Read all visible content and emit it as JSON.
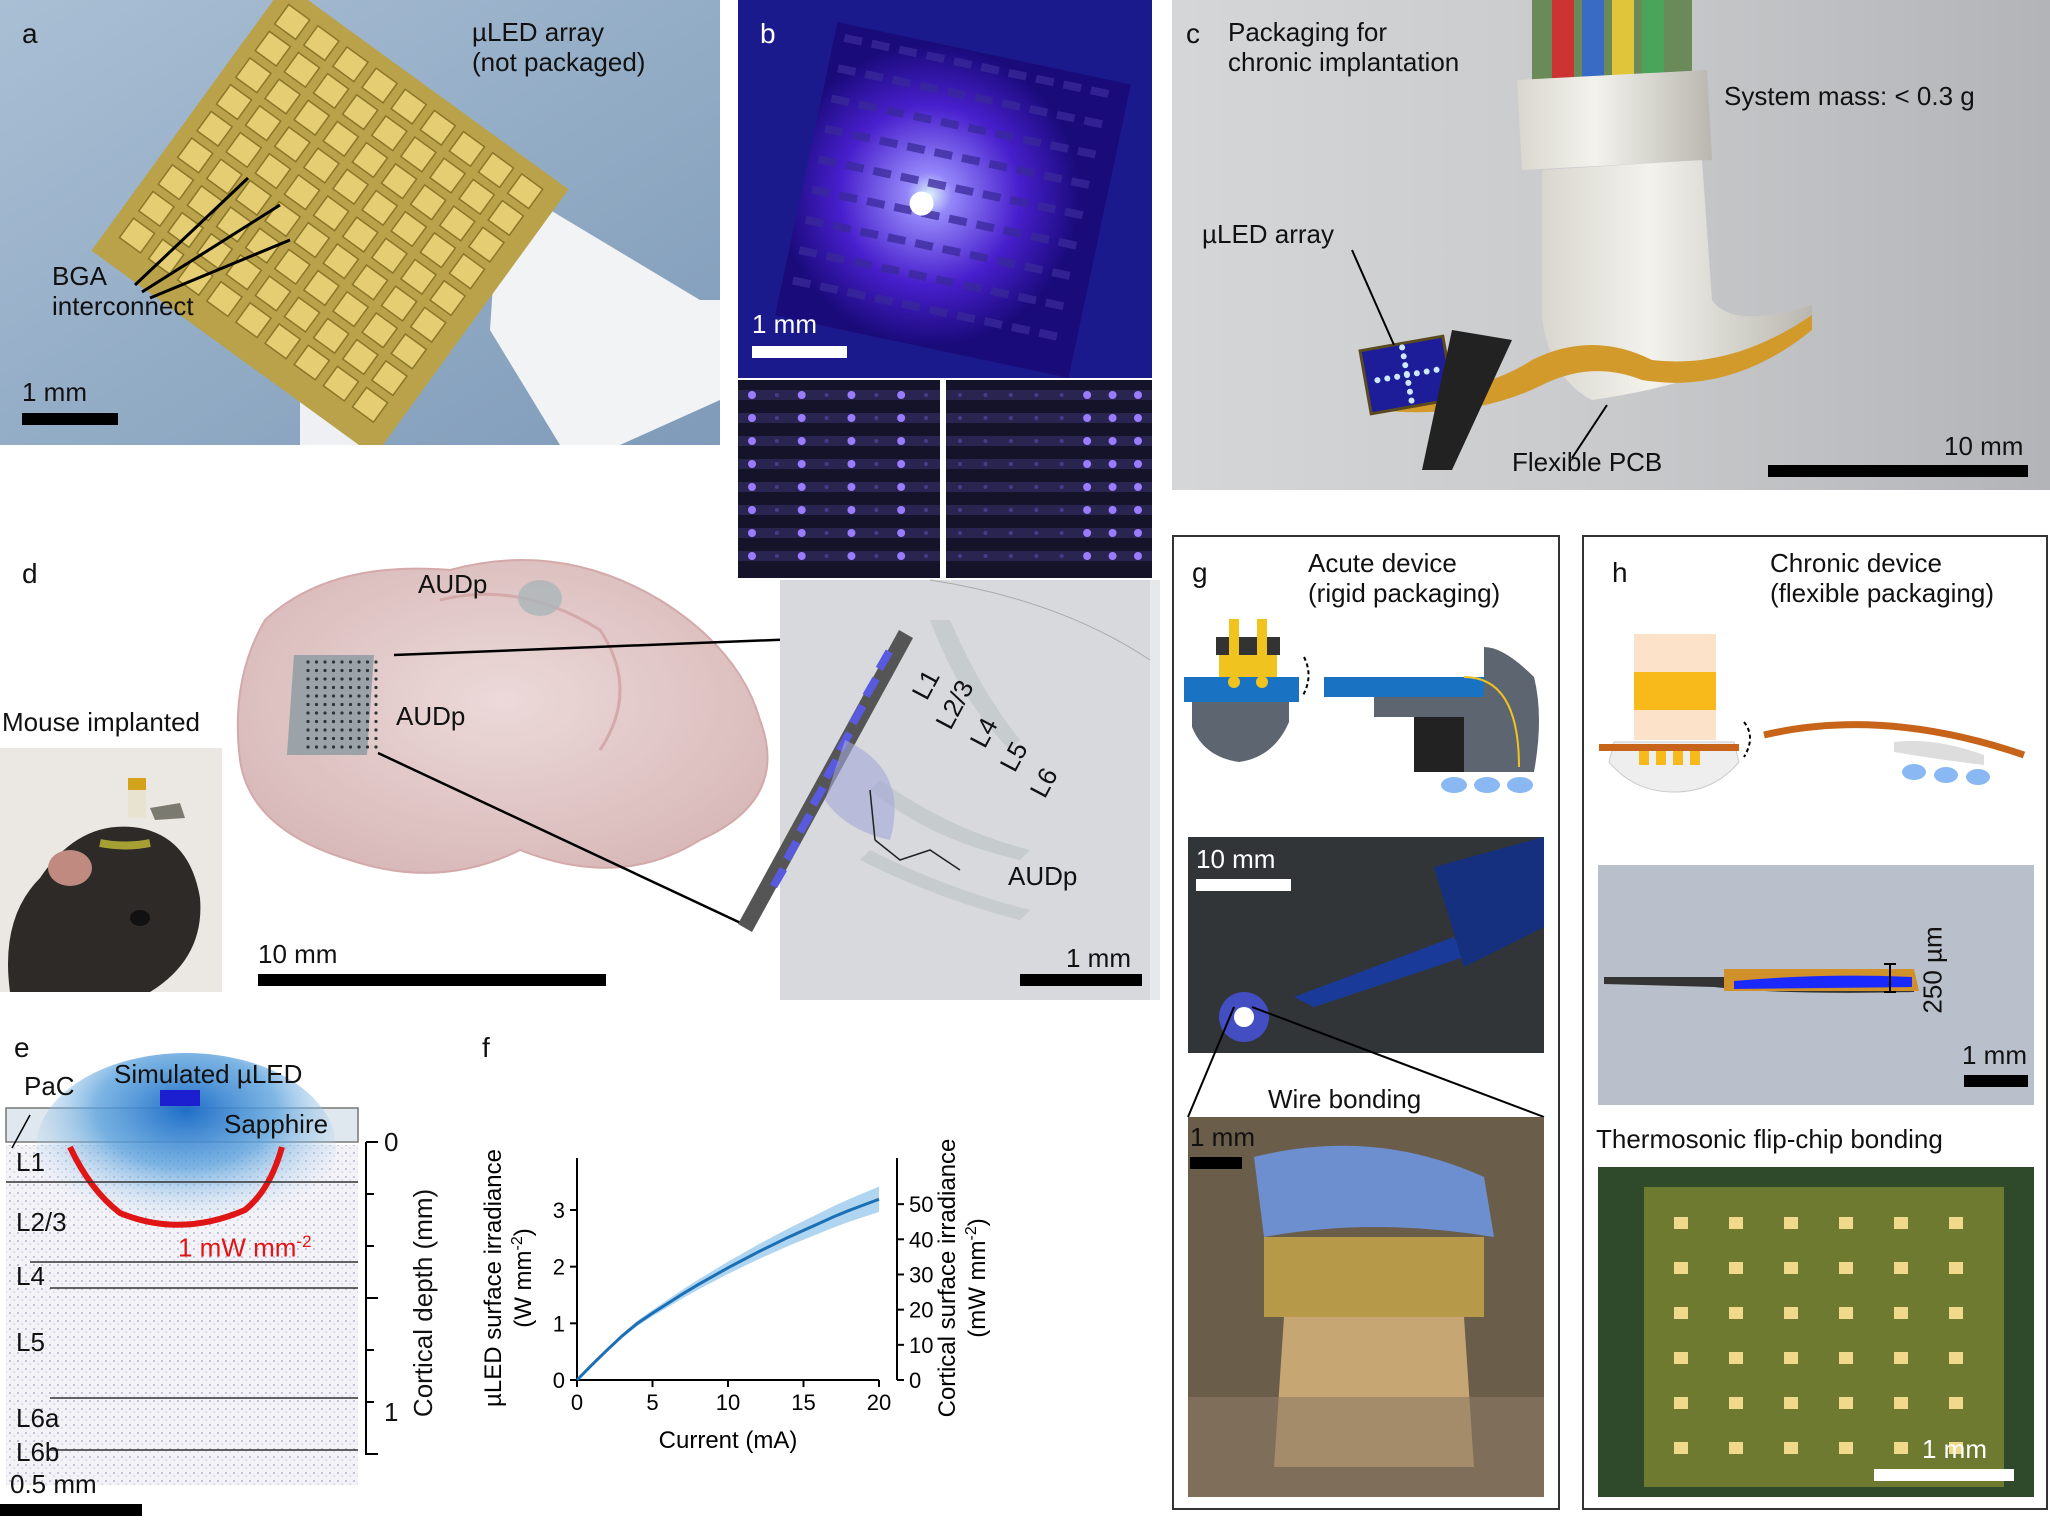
{
  "panels": {
    "a": {
      "letter": "a",
      "title": "µLED array\n(not packaged)",
      "annot": "BGA\ninterconnect",
      "scale": "1 mm"
    },
    "b": {
      "letter": "b",
      "scale": "1 mm"
    },
    "c": {
      "letter": "c",
      "title": "Packaging for\nchronic implantation",
      "mass": "System mass: < 0.3 g",
      "array": "µLED array",
      "pcb": "Flexible PCB",
      "scale": "10 mm"
    },
    "d": {
      "letter": "d",
      "mouse": "Mouse implanted",
      "audp1": "AUDp",
      "audp2": "AUDp",
      "audp3": "AUDp",
      "layers": [
        "L1",
        "L2/3",
        "L4",
        "L5",
        "L6"
      ],
      "scale1": "10 mm",
      "scale2": "1 mm"
    },
    "e": {
      "letter": "e",
      "pac": "PaC",
      "sim": "Simulated µLED",
      "sapphire": "Sapphire",
      "contour": "1 mW mm",
      "contour_exp": "-2",
      "layers": [
        "L1",
        "L2/3",
        "L4",
        "L5",
        "L6a",
        "L6b"
      ],
      "ylabel": "Cortical depth (mm)",
      "ticks": [
        "0",
        "1"
      ],
      "scale": "0.5 mm"
    },
    "f": {
      "letter": "f"
    },
    "g": {
      "letter": "g",
      "title": "Acute device\n(rigid packaging)",
      "scale1": "10 mm",
      "wire": "Wire bonding",
      "scale2": "1 mm"
    },
    "h": {
      "letter": "h",
      "title": "Chronic device\n(flexible packaging)",
      "dim": "250 µm",
      "scale1": "1 mm",
      "flip": "Thermosonic flip-chip bonding",
      "scale2": "1 mm"
    }
  },
  "chart_data": {
    "type": "line",
    "xlabel": "Current (mA)",
    "ylabel": "µLED surface irradiance (W mm-2)",
    "ylabel_main": "µLED surface irradiance",
    "ylabel_unit": "(W mm",
    "ylabel_unit_exp": "-2",
    "y2label_main": "Cortical surface irradiance",
    "y2label_unit": "(mW mm",
    "y2label_unit_exp": "-2",
    "xlim": [
      0,
      20
    ],
    "ylim": [
      0,
      3.6
    ],
    "y2lim": [
      0,
      58
    ],
    "xticks": [
      0,
      5,
      10,
      15,
      20
    ],
    "yticks": [
      0,
      1,
      2,
      3
    ],
    "y2ticks": [
      0,
      10,
      20,
      30,
      40,
      50
    ],
    "series": [
      {
        "x": [
          0,
          1,
          2,
          3,
          4,
          5,
          6,
          7,
          8,
          9,
          10,
          11,
          12,
          13,
          14,
          15,
          16,
          17,
          18,
          19,
          20
        ],
        "y": [
          0,
          0.27,
          0.53,
          0.78,
          1.0,
          1.18,
          1.35,
          1.52,
          1.68,
          1.83,
          1.98,
          2.12,
          2.26,
          2.39,
          2.52,
          2.64,
          2.76,
          2.88,
          2.99,
          3.09,
          3.19
        ]
      }
    ],
    "line_color": "#1a6fb5",
    "band_color": "#8ec3ea"
  }
}
